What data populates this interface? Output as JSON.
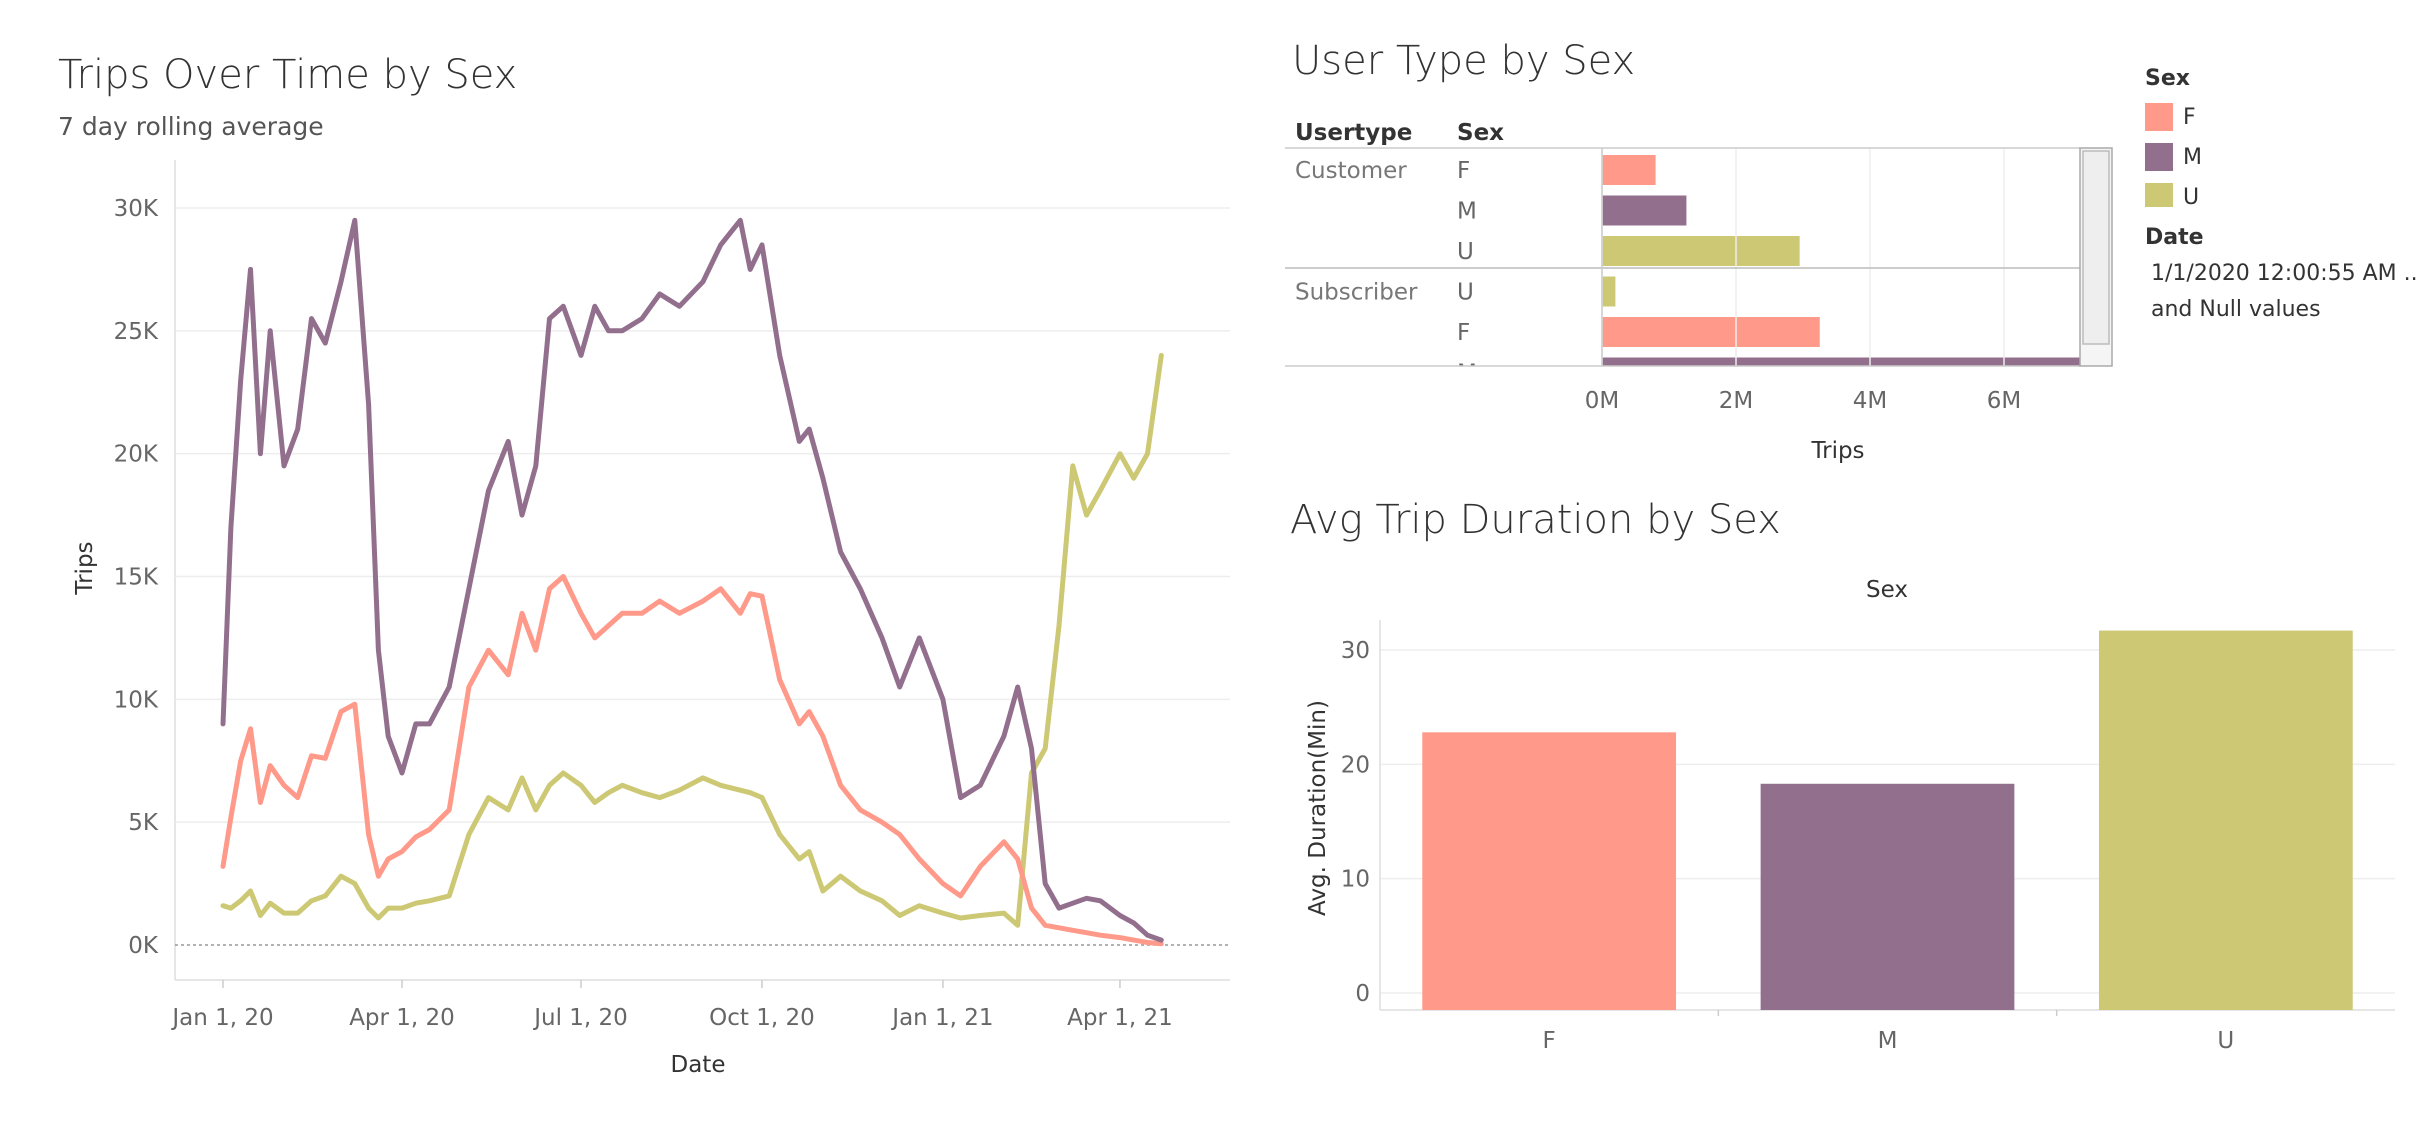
{
  "colors": {
    "F": "#ff9a8a",
    "M": "#936f8e",
    "U": "#cdc874"
  },
  "line_panel": {
    "title": "Trips Over Time by Sex",
    "subtitle": "7 day rolling average"
  },
  "bar_panel": {
    "title": "User Type by Sex",
    "col_usertype": "Usertype",
    "col_sex": "Sex"
  },
  "avg_panel": {
    "title": "Avg Trip Duration by Sex"
  },
  "legend": {
    "sex_title": "Sex",
    "items": [
      "F",
      "M",
      "U"
    ],
    "date_title": "Date",
    "date_line1": "1/1/2020 12:00:55 AM ..",
    "date_line2": "and Null values"
  },
  "chart_data": [
    {
      "type": "line",
      "title": "Trips Over Time by Sex",
      "subtitle": "7 day rolling average",
      "xlabel": "Date",
      "ylabel": "Trips",
      "x_ticks": [
        "Jan 1, 20",
        "Apr 1, 20",
        "Jul 1, 20",
        "Oct 1, 20",
        "Jan 1, 21",
        "Apr 1, 21"
      ],
      "y_ticks": [
        "0K",
        "5K",
        "10K",
        "15K",
        "20K",
        "25K",
        "30K"
      ],
      "ylim": [
        0,
        31000
      ],
      "x": [
        "2020-01-01",
        "2020-01-05",
        "2020-01-10",
        "2020-01-15",
        "2020-01-20",
        "2020-01-25",
        "2020-02-01",
        "2020-02-08",
        "2020-02-15",
        "2020-02-22",
        "2020-03-01",
        "2020-03-08",
        "2020-03-15",
        "2020-03-20",
        "2020-03-25",
        "2020-04-01",
        "2020-04-08",
        "2020-04-15",
        "2020-04-25",
        "2020-05-05",
        "2020-05-15",
        "2020-05-25",
        "2020-06-01",
        "2020-06-08",
        "2020-06-15",
        "2020-06-22",
        "2020-07-01",
        "2020-07-08",
        "2020-07-15",
        "2020-07-22",
        "2020-08-01",
        "2020-08-10",
        "2020-08-20",
        "2020-09-01",
        "2020-09-10",
        "2020-09-20",
        "2020-09-25",
        "2020-10-01",
        "2020-10-10",
        "2020-10-20",
        "2020-10-25",
        "2020-11-01",
        "2020-11-10",
        "2020-11-20",
        "2020-12-01",
        "2020-12-10",
        "2020-12-20",
        "2021-01-01",
        "2021-01-10",
        "2021-01-20",
        "2021-02-01",
        "2021-02-08",
        "2021-02-15",
        "2021-02-22",
        "2021-03-01",
        "2021-03-08",
        "2021-03-15",
        "2021-03-22",
        "2021-04-01",
        "2021-04-08",
        "2021-04-15",
        "2021-04-22"
      ],
      "series": [
        {
          "name": "M",
          "values": [
            9000,
            17000,
            23000,
            27500,
            20000,
            25000,
            19500,
            21000,
            25500,
            24500,
            27000,
            29500,
            22000,
            12000,
            8500,
            7000,
            9000,
            9000,
            10500,
            14500,
            18500,
            20500,
            17500,
            19500,
            25500,
            26000,
            24000,
            26000,
            25000,
            25000,
            25500,
            26500,
            26000,
            27000,
            28500,
            29500,
            27500,
            28500,
            24000,
            20500,
            21000,
            19000,
            16000,
            14500,
            12500,
            10500,
            12500,
            10000,
            6000,
            6500,
            8500,
            10500,
            8000,
            2500,
            1500,
            1700,
            1900,
            1800,
            1200,
            900,
            400,
            200
          ]
        },
        {
          "name": "F",
          "values": [
            3200,
            5200,
            7500,
            8800,
            5800,
            7300,
            6500,
            6000,
            7700,
            7600,
            9500,
            9800,
            4500,
            2800,
            3500,
            3800,
            4400,
            4700,
            5500,
            10500,
            12000,
            11000,
            13500,
            12000,
            14500,
            15000,
            13500,
            12500,
            13000,
            13500,
            13500,
            14000,
            13500,
            14000,
            14500,
            13500,
            14300,
            14200,
            10800,
            9000,
            9500,
            8500,
            6500,
            5500,
            5000,
            4500,
            3500,
            2500,
            2000,
            3200,
            4200,
            3500,
            1500,
            800,
            700,
            600,
            500,
            400,
            300,
            200,
            100,
            50
          ]
        },
        {
          "name": "U",
          "values": [
            1600,
            1500,
            1800,
            2200,
            1200,
            1700,
            1300,
            1300,
            1800,
            2000,
            2800,
            2500,
            1500,
            1100,
            1500,
            1500,
            1700,
            1800,
            2000,
            4500,
            6000,
            5500,
            6800,
            5500,
            6500,
            7000,
            6500,
            5800,
            6200,
            6500,
            6200,
            6000,
            6300,
            6800,
            6500,
            6300,
            6200,
            6000,
            4500,
            3500,
            3800,
            2200,
            2800,
            2200,
            1800,
            1200,
            1600,
            1300,
            1100,
            1200,
            1300,
            800,
            7000,
            8000,
            13000,
            19500,
            17500,
            18500,
            20000,
            19000,
            20000,
            24000
          ]
        }
      ]
    },
    {
      "type": "bar",
      "title": "User Type by Sex",
      "xlabel": "Trips",
      "x_ticks": [
        "0M",
        "2M",
        "4M",
        "6M"
      ],
      "xlim": [
        -400000,
        8000000
      ],
      "rows": [
        {
          "usertype": "Customer",
          "sex": "F",
          "value": 800000
        },
        {
          "usertype": "",
          "sex": "M",
          "value": 1260000
        },
        {
          "usertype": "",
          "sex": "U",
          "value": 2950000
        },
        {
          "usertype": "Subscriber",
          "sex": "U",
          "value": 200000
        },
        {
          "usertype": "",
          "sex": "F",
          "value": 3250000
        },
        {
          "usertype": "",
          "sex": "M",
          "value": 7750000
        }
      ]
    },
    {
      "type": "bar",
      "title": "Avg Trip Duration by Sex",
      "xlabel": "Sex",
      "ylabel": "Avg. Duration(Min)",
      "categories": [
        "F",
        "M",
        "U"
      ],
      "values": [
        22.8,
        18.3,
        31.7
      ],
      "y_ticks": [
        "0",
        "10",
        "20",
        "30"
      ],
      "ylim": [
        -1.5,
        34
      ]
    }
  ]
}
